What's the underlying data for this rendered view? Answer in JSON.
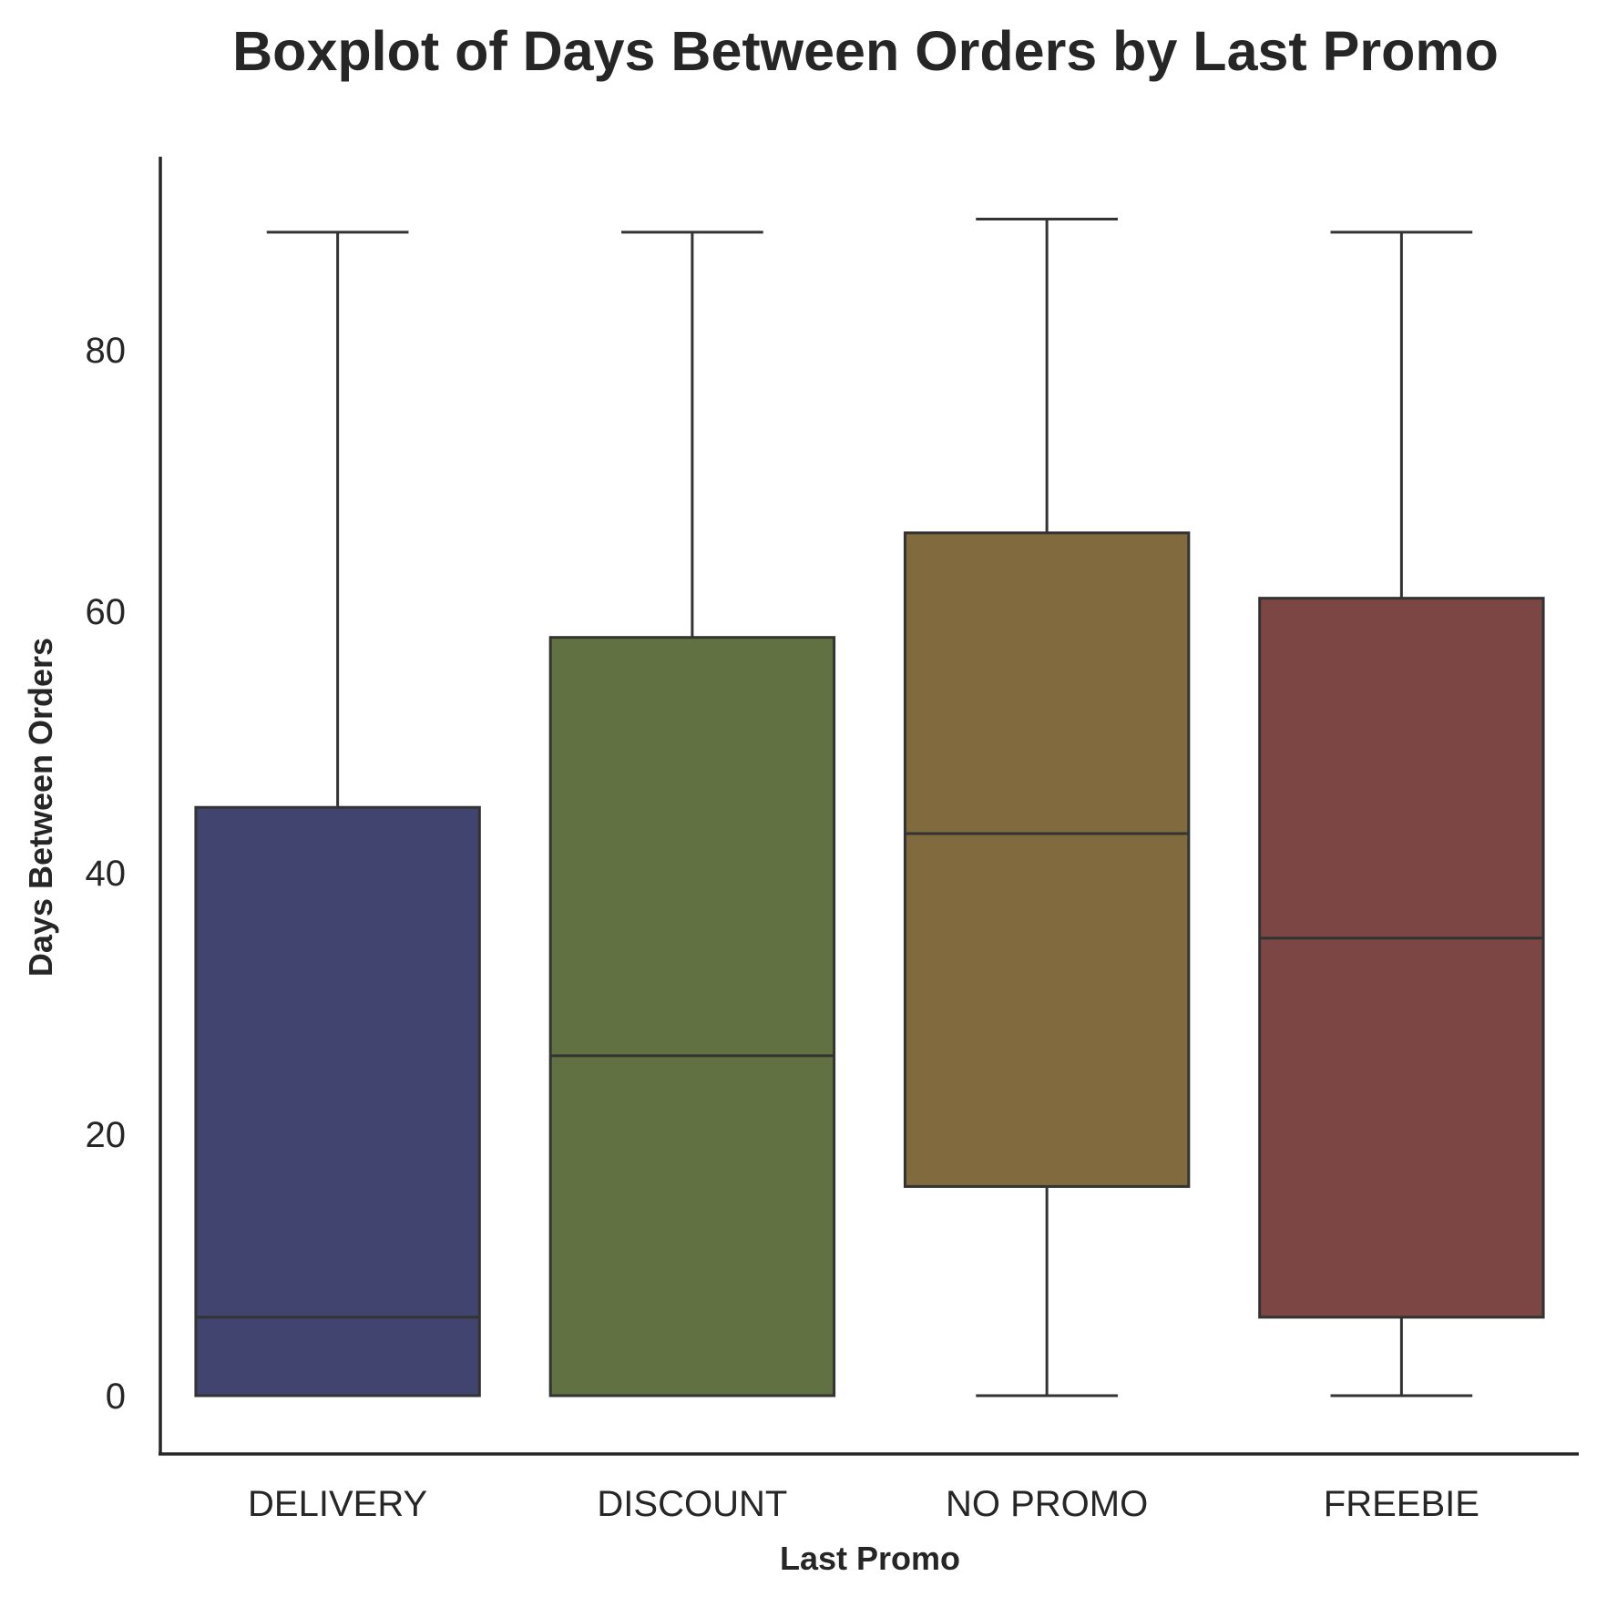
{
  "chart_data": {
    "type": "boxplot",
    "title": "Boxplot of Days Between Orders by Last Promo",
    "xlabel": "Last Promo",
    "ylabel": "Days Between Orders",
    "ylim": [
      -4.5,
      95
    ],
    "yticks": [
      0,
      20,
      40,
      60,
      80
    ],
    "grid": false,
    "categories": [
      "DELIVERY",
      "DISCOUNT",
      "NO PROMO",
      "FREEBIE"
    ],
    "boxes": [
      {
        "category": "DELIVERY",
        "min": 0,
        "q1": 0,
        "median": 6,
        "q3": 45,
        "max": 89,
        "color": "#424470"
      },
      {
        "category": "DISCOUNT",
        "min": 0,
        "q1": 0,
        "median": 26,
        "q3": 58,
        "max": 89,
        "color": "#617142"
      },
      {
        "category": "NO PROMO",
        "min": 0,
        "q1": 16,
        "median": 43,
        "q3": 66,
        "max": 90,
        "color": "#816a3d"
      },
      {
        "category": "FREEBIE",
        "min": 0,
        "q1": 6,
        "median": 35,
        "q3": 61,
        "max": 89,
        "color": "#7b4643"
      }
    ]
  }
}
